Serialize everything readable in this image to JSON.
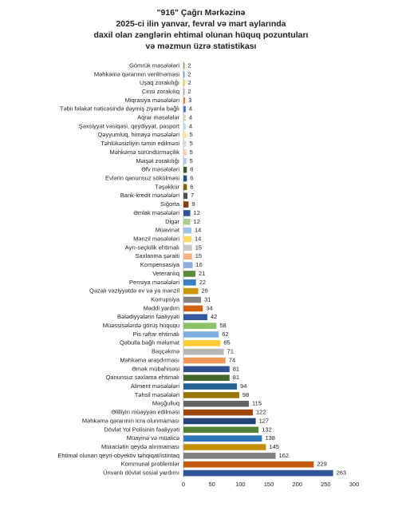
{
  "chart_data": {
    "type": "bar",
    "orientation": "horizontal",
    "title": [
      "\"916\" Çağrı Mərkəzinə",
      "2025-ci ilin yanvar, fevral və mart aylarında",
      "daxil olan zənglərin ehtimal olunan hüquq pozuntuları",
      "və məzmun üzrə statistikası"
    ],
    "categories": [
      "Gömrük məsələləri",
      "Məhkəmə qərarının verilməməsi",
      "Uşaq zorakılığı",
      "Cinsi zorakılıq",
      "Miqrasiya məsələləri",
      "Təbii fəlakət nəticəsində dəymiş ziyanla bağlı",
      "Aqrar məsələlər",
      "Şəxsiyyət vəsiqəsi, qeydiyyat, pasport",
      "Qəyyumluq, himayə məsələləri",
      "Təhlükəsizliyin təmin edilməsi",
      "Məhkəmə süründürməçilik",
      "Məişət zorakılığı",
      "Əfv məsələləri",
      "Evlərin qanunsuz sökülməsi",
      "Təşəkkür",
      "Bank-kredit məsələləri",
      "Sığorta",
      "Əmlak məsələləri",
      "Digər",
      "Müavinət",
      "Mənzil məsələləri",
      "Ayrı-seçkilik ehtimalı",
      "Saxlanma şəraiti",
      "Kompensasiya",
      "Veteranlıq",
      "Pensiya məsələləri",
      "Qəzalı vəziyyətdə ev və ya mənzil",
      "Korrupsiya",
      "Maddi yardım",
      "Bələdiyyələrin fəaliyyəti",
      "Müəssisələrdə görüş hüququ",
      "Pis rəftar ehtimalı",
      "Qəbulla bağlı məlumat",
      "Başçəkmə",
      "Məhkəmə araşdırması",
      "Əmək mübahisəsi",
      "Qanunsuz saxlama ehtimalı",
      "Aliment məsələləri",
      "Təhsil məsələləri",
      "Məşğulluq",
      "Əlilliyin müəyyən edilməsi",
      "Məhkəmə qərarının icra olunmaması",
      "Dövlət Yol Polisinin fəaliyyəti",
      "Müayinə və müalicə",
      "Müraciətin qeydə alınmaması",
      "Ehtimal olunan qeyri-obyektiv təhqiqat/istintaq",
      "Kommunal problemlər",
      "Ünvanlı dövlət sosial yardımı"
    ],
    "values": [
      2,
      2,
      2,
      2,
      3,
      4,
      4,
      4,
      5,
      5,
      5,
      5,
      6,
      6,
      6,
      7,
      9,
      12,
      12,
      14,
      14,
      15,
      15,
      16,
      21,
      22,
      26,
      31,
      34,
      42,
      58,
      62,
      65,
      71,
      74,
      81,
      81,
      94,
      98,
      115,
      122,
      127,
      132,
      138,
      145,
      162,
      229,
      263
    ],
    "colors": [
      "#70ad47",
      "#5b9bd5",
      "#ffc000",
      "#a5a5a5",
      "#ed7d31",
      "#4472c4",
      "#c5e0b4",
      "#bdd7ee",
      "#ffe699",
      "#dbdbdb",
      "#f8cbad",
      "#b4c7e7",
      "#385723",
      "#1f4e79",
      "#7f6000",
      "#525252",
      "#843c0c",
      "#2f5597",
      "#a9d18e",
      "#9dc3e6",
      "#ffd966",
      "#c9c9c9",
      "#f4b183",
      "#8faadc",
      "#5a8a39",
      "#3c7dc4",
      "#cc9a00",
      "#848484",
      "#d26012",
      "#335aa1",
      "#8cc168",
      "#7cafdd",
      "#ffcd33",
      "#b7b7b7",
      "#f1975a",
      "#2f4f8f",
      "#43682b",
      "#255e91",
      "#997300",
      "#636363",
      "#9e480e",
      "#264478",
      "#548235",
      "#2e75b6",
      "#bf9000",
      "#7f7f7f",
      "#c55a11",
      "#2f5597"
    ],
    "xlim": [
      0,
      300
    ],
    "xticks": [
      0,
      50,
      100,
      150,
      200,
      250,
      300
    ],
    "grid": false
  }
}
